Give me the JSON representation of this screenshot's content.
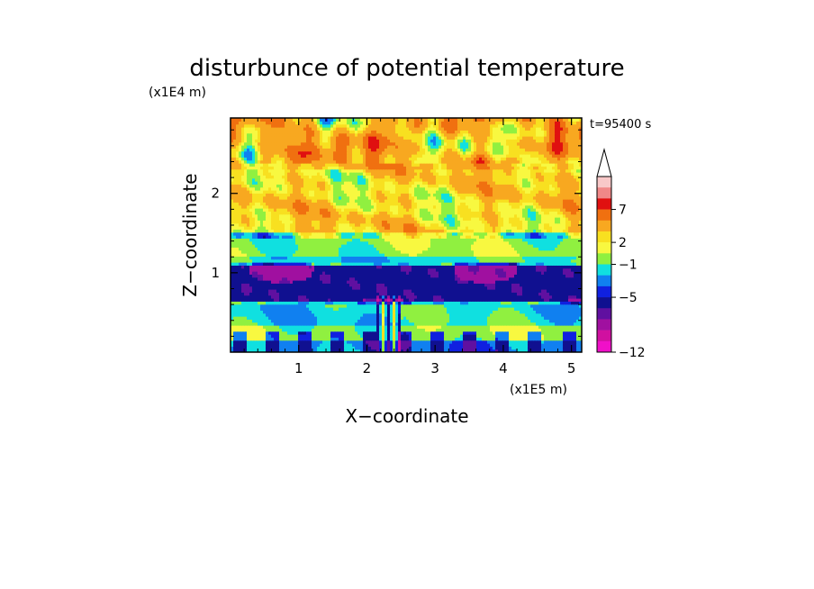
{
  "chart_data": {
    "type": "heatmap",
    "title": "disturbunce of potential temperature",
    "xlabel": "X−coordinate",
    "ylabel": "Z−coordinate",
    "x_unit": "(x1E5 m)",
    "y_unit": "(x1E4 m)",
    "time_label": "t=95400 s",
    "xlim": [
      0,
      5.15
    ],
    "ylim": [
      0,
      2.95
    ],
    "x_ticks": [
      1,
      2,
      3,
      4,
      5
    ],
    "x_tick_labels": [
      "1",
      "2",
      "3",
      "4",
      "5"
    ],
    "y_ticks": [
      1,
      2
    ],
    "y_tick_labels": [
      "1",
      "2"
    ],
    "colorbar": {
      "labels": [
        "7",
        "2",
        "−1",
        "−5",
        "−12"
      ],
      "label_values": [
        7,
        2,
        -1,
        -5,
        -12
      ],
      "colors_top_to_bottom": [
        "#f8c8c8",
        "#f08888",
        "#e01010",
        "#f07010",
        "#f8a820",
        "#f8e020",
        "#f8f840",
        "#90f040",
        "#10e0e0",
        "#1080f0",
        "#1020e0",
        "#101090",
        "#6010a0",
        "#a010a0",
        "#d010a0",
        "#f010c8"
      ],
      "extend": "max"
    },
    "vertical_structure": [
      {
        "z_from": 2.3,
        "z_to": 2.95,
        "level": 3
      },
      {
        "z_from": 1.5,
        "z_to": 2.3,
        "level": 2
      },
      {
        "z_from": 1.22,
        "z_to": 1.5,
        "level": 0
      },
      {
        "z_from": 1.1,
        "z_to": 1.22,
        "level": -1
      },
      {
        "z_from": 0.65,
        "z_to": 1.1,
        "level": -5
      },
      {
        "z_from": 0.35,
        "z_to": 0.65,
        "level": -1
      },
      {
        "z_from": 0.15,
        "z_to": 0.35,
        "level": 0
      },
      {
        "z_from": 0.0,
        "z_to": 0.15,
        "level": -2
      }
    ]
  }
}
